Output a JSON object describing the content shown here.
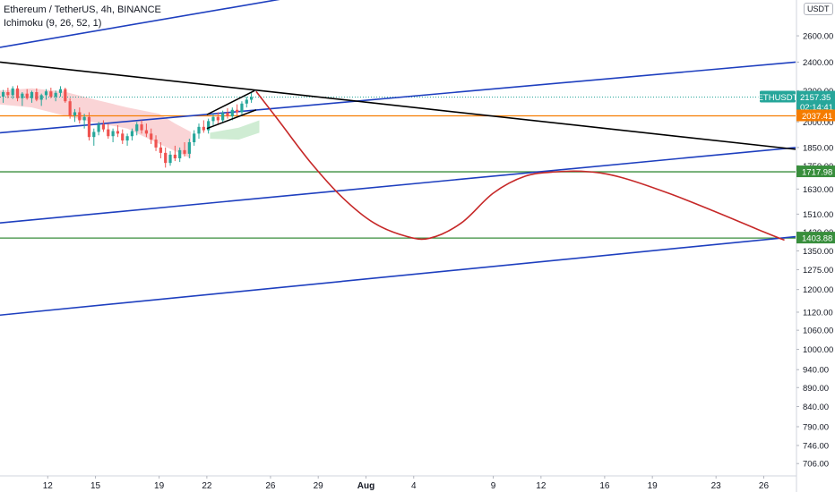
{
  "legend": {
    "symbol_line": "Ethereum / TetherUS, 4h, BINANCE",
    "indicator_line": "Ichimoku (9, 26, 52, 1)"
  },
  "currency": "USDT",
  "colors": {
    "up": "#26a69a",
    "down": "#ef5350",
    "blue_line": "#1e3fbf",
    "black_line": "#000000",
    "orange_line": "#f57c00",
    "green_line": "#388e3c",
    "projection": "#c62828",
    "cloud_red": "#f8c5c8",
    "cloud_green": "#bfe6c4",
    "last_price_bg": "#26a69a"
  },
  "chart_data": {
    "type": "candlestick",
    "symbol": "ETHUSDT",
    "timeframe": "4h",
    "y_axis": {
      "scale": "log",
      "range": [
        680,
        2900
      ],
      "ticks": [
        2600,
        2400,
        2200,
        2100,
        2000,
        1850,
        1750,
        1630,
        1510,
        1430,
        1350,
        1275,
        1200,
        1120,
        1060,
        1000,
        940,
        890,
        840,
        790,
        746,
        706
      ],
      "tick_labels": [
        "2600.00",
        "2400.00",
        "2200.00",
        "2100.00",
        "2000.00",
        "1850.00",
        "1750.00",
        "1630.00",
        "1510.00",
        "1430.00",
        "1350.00",
        "1275.00",
        "1200.00",
        "1120.00",
        "1060.00",
        "1000.00",
        "940.00",
        "890.00",
        "840.00",
        "790.00",
        "746.00",
        "706.00"
      ]
    },
    "x_axis": {
      "start_day": 9,
      "end_day": 59,
      "ticks": [
        {
          "day": 12,
          "label": "12",
          "bold": false
        },
        {
          "day": 15,
          "label": "15",
          "bold": false
        },
        {
          "day": 19,
          "label": "19",
          "bold": false
        },
        {
          "day": 22,
          "label": "22",
          "bold": false
        },
        {
          "day": 26,
          "label": "26",
          "bold": false
        },
        {
          "day": 29,
          "label": "29",
          "bold": false
        },
        {
          "day": 32,
          "label": "Aug",
          "bold": true
        },
        {
          "day": 35,
          "label": "4",
          "bold": false
        },
        {
          "day": 40,
          "label": "9",
          "bold": false
        },
        {
          "day": 43,
          "label": "12",
          "bold": false
        },
        {
          "day": 47,
          "label": "16",
          "bold": false
        },
        {
          "day": 50,
          "label": "19",
          "bold": false
        },
        {
          "day": 54,
          "label": "23",
          "bold": false
        },
        {
          "day": 57,
          "label": "26",
          "bold": false
        }
      ]
    },
    "price_labels": [
      {
        "ticker": "ETHUSDT",
        "price": 2157.35,
        "text": "2157.35",
        "countdown": "02:14:41",
        "color": "#26a69a"
      },
      {
        "price": 2037.41,
        "text": "2037.41",
        "color": "#f57c00"
      },
      {
        "price": 1717.98,
        "text": "1717.98",
        "color": "#388e3c"
      },
      {
        "price": 1403.88,
        "text": "1403.88",
        "color": "#388e3c"
      }
    ],
    "horizontal_levels": [
      {
        "price": 2037.41,
        "color": "#f57c00"
      },
      {
        "price": 1717.98,
        "color": "#388e3c"
      },
      {
        "price": 1403.88,
        "color": "#388e3c"
      }
    ],
    "trend_lines": [
      {
        "color": "#1e3fbf",
        "points": [
          {
            "day": 9,
            "price": 2510
          },
          {
            "day": 30,
            "price": 2990
          }
        ]
      },
      {
        "color": "#1e3fbf",
        "points": [
          {
            "day": 9,
            "price": 1935
          },
          {
            "day": 59,
            "price": 2400
          }
        ]
      },
      {
        "color": "#1e3fbf",
        "points": [
          {
            "day": 9,
            "price": 1470
          },
          {
            "day": 59,
            "price": 1850
          }
        ]
      },
      {
        "color": "#1e3fbf",
        "points": [
          {
            "day": 9,
            "price": 1110
          },
          {
            "day": 59,
            "price": 1410
          }
        ]
      },
      {
        "color": "#000000",
        "points": [
          {
            "day": 9,
            "price": 2400
          },
          {
            "day": 59,
            "price": 1840
          }
        ]
      }
    ],
    "wedge": {
      "color": "#000000",
      "upper": [
        {
          "day": 22,
          "price": 2045
        },
        {
          "day": 25,
          "price": 2200
        }
      ],
      "lower": [
        {
          "day": 22,
          "price": 1960
        },
        {
          "day": 25.1,
          "price": 2075
        }
      ]
    },
    "projection_path": {
      "color": "#c62828",
      "points": [
        {
          "day": 25.1,
          "price": 2195
        },
        {
          "day": 26.5,
          "price": 2010
        },
        {
          "day": 28.5,
          "price": 1770
        },
        {
          "day": 30.5,
          "price": 1590
        },
        {
          "day": 32.5,
          "price": 1470
        },
        {
          "day": 34.5,
          "price": 1412
        },
        {
          "day": 36,
          "price": 1403
        },
        {
          "day": 38,
          "price": 1470
        },
        {
          "day": 40,
          "price": 1610
        },
        {
          "day": 42,
          "price": 1695
        },
        {
          "day": 44,
          "price": 1718
        },
        {
          "day": 46,
          "price": 1718
        },
        {
          "day": 48,
          "price": 1690
        },
        {
          "day": 51,
          "price": 1610
        },
        {
          "day": 54,
          "price": 1520
        },
        {
          "day": 57,
          "price": 1430
        },
        {
          "day": 58.3,
          "price": 1395
        }
      ]
    },
    "ichimoku_cloud": {
      "red": {
        "upper": [
          {
            "day": 9,
            "price": 2200
          },
          {
            "day": 11,
            "price": 2215
          },
          {
            "day": 13,
            "price": 2195
          },
          {
            "day": 15,
            "price": 2140
          },
          {
            "day": 17,
            "price": 2090
          },
          {
            "day": 19,
            "price": 2050
          },
          {
            "day": 20,
            "price": 1990
          },
          {
            "day": 21,
            "price": 1940
          }
        ],
        "lower": [
          {
            "day": 21,
            "price": 1790
          },
          {
            "day": 20,
            "price": 1830
          },
          {
            "day": 19,
            "price": 1870
          },
          {
            "day": 17,
            "price": 1960
          },
          {
            "day": 15,
            "price": 1995
          },
          {
            "day": 13,
            "price": 2040
          },
          {
            "day": 11,
            "price": 2090
          },
          {
            "day": 9,
            "price": 2110
          }
        ]
      },
      "green": {
        "upper": [
          {
            "day": 22.2,
            "price": 1935
          },
          {
            "day": 24,
            "price": 1965
          },
          {
            "day": 25.3,
            "price": 2010
          }
        ],
        "lower": [
          {
            "day": 25.3,
            "price": 1935
          },
          {
            "day": 24,
            "price": 1895
          },
          {
            "day": 22.2,
            "price": 1900
          }
        ]
      }
    },
    "candles": [
      {
        "day": 9.2,
        "open": 2160,
        "high": 2205,
        "low": 2120,
        "close": 2190
      },
      {
        "day": 9.5,
        "open": 2190,
        "high": 2220,
        "low": 2150,
        "close": 2170
      },
      {
        "day": 9.8,
        "open": 2170,
        "high": 2230,
        "low": 2145,
        "close": 2215
      },
      {
        "day": 10.1,
        "open": 2215,
        "high": 2235,
        "low": 2130,
        "close": 2150
      },
      {
        "day": 10.4,
        "open": 2150,
        "high": 2190,
        "low": 2100,
        "close": 2180
      },
      {
        "day": 10.7,
        "open": 2180,
        "high": 2210,
        "low": 2140,
        "close": 2150
      },
      {
        "day": 11.0,
        "open": 2150,
        "high": 2200,
        "low": 2120,
        "close": 2190
      },
      {
        "day": 11.3,
        "open": 2190,
        "high": 2215,
        "low": 2130,
        "close": 2140
      },
      {
        "day": 11.6,
        "open": 2140,
        "high": 2180,
        "low": 2100,
        "close": 2170
      },
      {
        "day": 11.9,
        "open": 2170,
        "high": 2210,
        "low": 2140,
        "close": 2195
      },
      {
        "day": 12.2,
        "open": 2195,
        "high": 2220,
        "low": 2150,
        "close": 2160
      },
      {
        "day": 12.5,
        "open": 2160,
        "high": 2200,
        "low": 2130,
        "close": 2185
      },
      {
        "day": 12.8,
        "open": 2185,
        "high": 2230,
        "low": 2160,
        "close": 2210
      },
      {
        "day": 13.1,
        "open": 2210,
        "high": 2220,
        "low": 2120,
        "close": 2130
      },
      {
        "day": 13.4,
        "open": 2130,
        "high": 2150,
        "low": 2020,
        "close": 2040
      },
      {
        "day": 13.7,
        "open": 2040,
        "high": 2080,
        "low": 2000,
        "close": 2060
      },
      {
        "day": 14.0,
        "open": 2060,
        "high": 2090,
        "low": 1990,
        "close": 2010
      },
      {
        "day": 14.3,
        "open": 2010,
        "high": 2050,
        "low": 1960,
        "close": 2030
      },
      {
        "day": 14.6,
        "open": 2030,
        "high": 2060,
        "low": 1890,
        "close": 1910
      },
      {
        "day": 14.9,
        "open": 1910,
        "high": 1960,
        "low": 1860,
        "close": 1940
      },
      {
        "day": 15.2,
        "open": 1940,
        "high": 2000,
        "low": 1920,
        "close": 1985
      },
      {
        "day": 15.5,
        "open": 1985,
        "high": 2010,
        "low": 1940,
        "close": 1955
      },
      {
        "day": 15.8,
        "open": 1955,
        "high": 1990,
        "low": 1900,
        "close": 1915
      },
      {
        "day": 16.1,
        "open": 1915,
        "high": 1960,
        "low": 1880,
        "close": 1945
      },
      {
        "day": 16.4,
        "open": 1945,
        "high": 1980,
        "low": 1910,
        "close": 1930
      },
      {
        "day": 16.7,
        "open": 1930,
        "high": 1955,
        "low": 1870,
        "close": 1890
      },
      {
        "day": 17.0,
        "open": 1890,
        "high": 1930,
        "low": 1860,
        "close": 1915
      },
      {
        "day": 17.3,
        "open": 1915,
        "high": 1960,
        "low": 1890,
        "close": 1945
      },
      {
        "day": 17.6,
        "open": 1945,
        "high": 2000,
        "low": 1920,
        "close": 1985
      },
      {
        "day": 17.9,
        "open": 1985,
        "high": 2010,
        "low": 1930,
        "close": 1950
      },
      {
        "day": 18.2,
        "open": 1950,
        "high": 1990,
        "low": 1910,
        "close": 1930
      },
      {
        "day": 18.5,
        "open": 1930,
        "high": 1960,
        "low": 1870,
        "close": 1895
      },
      {
        "day": 18.8,
        "open": 1895,
        "high": 1920,
        "low": 1830,
        "close": 1850
      },
      {
        "day": 19.1,
        "open": 1850,
        "high": 1880,
        "low": 1790,
        "close": 1820
      },
      {
        "day": 19.4,
        "open": 1820,
        "high": 1850,
        "low": 1740,
        "close": 1765
      },
      {
        "day": 19.7,
        "open": 1765,
        "high": 1830,
        "low": 1750,
        "close": 1810
      },
      {
        "day": 20.0,
        "open": 1810,
        "high": 1860,
        "low": 1775,
        "close": 1790
      },
      {
        "day": 20.3,
        "open": 1790,
        "high": 1850,
        "low": 1770,
        "close": 1835
      },
      {
        "day": 20.6,
        "open": 1835,
        "high": 1880,
        "low": 1800,
        "close": 1815
      },
      {
        "day": 20.9,
        "open": 1815,
        "high": 1900,
        "low": 1790,
        "close": 1880
      },
      {
        "day": 21.2,
        "open": 1880,
        "high": 1950,
        "low": 1860,
        "close": 1930
      },
      {
        "day": 21.5,
        "open": 1930,
        "high": 1990,
        "low": 1900,
        "close": 1970
      },
      {
        "day": 21.8,
        "open": 1970,
        "high": 2010,
        "low": 1935,
        "close": 1950
      },
      {
        "day": 22.1,
        "open": 1950,
        "high": 2020,
        "low": 1930,
        "close": 2005
      },
      {
        "day": 22.4,
        "open": 2005,
        "high": 2050,
        "low": 1980,
        "close": 2030
      },
      {
        "day": 22.7,
        "open": 2030,
        "high": 2060,
        "low": 1990,
        "close": 2010
      },
      {
        "day": 23.0,
        "open": 2010,
        "high": 2070,
        "low": 1995,
        "close": 2055
      },
      {
        "day": 23.3,
        "open": 2055,
        "high": 2085,
        "low": 2020,
        "close": 2035
      },
      {
        "day": 23.6,
        "open": 2035,
        "high": 2090,
        "low": 2010,
        "close": 2075
      },
      {
        "day": 23.9,
        "open": 2075,
        "high": 2110,
        "low": 2040,
        "close": 2060
      },
      {
        "day": 24.2,
        "open": 2060,
        "high": 2130,
        "low": 2045,
        "close": 2115
      },
      {
        "day": 24.5,
        "open": 2115,
        "high": 2160,
        "low": 2090,
        "close": 2140
      },
      {
        "day": 24.8,
        "open": 2140,
        "high": 2185,
        "low": 2120,
        "close": 2157
      }
    ]
  }
}
